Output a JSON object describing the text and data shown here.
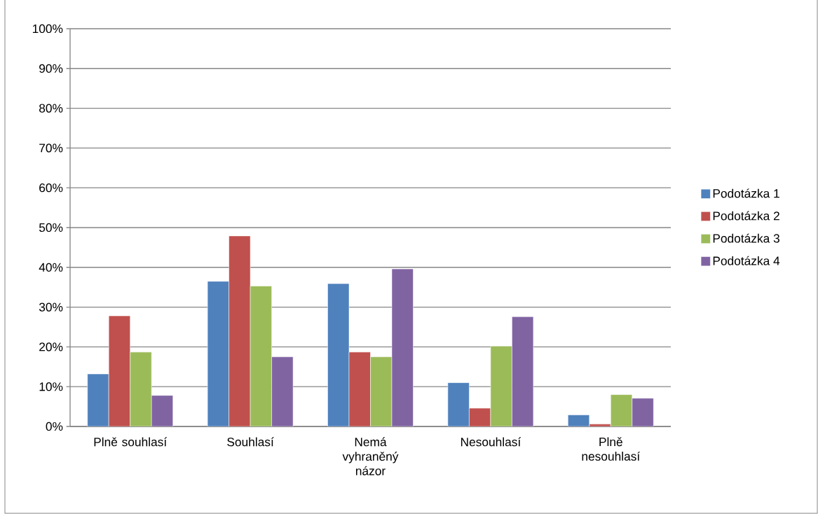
{
  "chart_data": {
    "type": "bar",
    "categories": [
      "Plně souhlasí",
      "Souhlasí",
      "Nemá vyhraněný názor",
      "Nesouhlasí",
      "Plně nesouhlasí"
    ],
    "series": [
      {
        "name": "Podotázka 1",
        "color": "#4f81bd",
        "values": [
          13.2,
          36.5,
          35.9,
          11.0,
          2.9
        ]
      },
      {
        "name": "Podotázka 2",
        "color": "#c0504d",
        "values": [
          27.8,
          47.9,
          18.7,
          4.6,
          0.6
        ]
      },
      {
        "name": "Podotázka 3",
        "color": "#9bbb59",
        "values": [
          18.7,
          35.3,
          17.5,
          20.2,
          8.0
        ]
      },
      {
        "name": "Podotázka 4",
        "color": "#8064a2",
        "values": [
          7.8,
          17.5,
          39.6,
          27.6,
          7.1
        ]
      }
    ],
    "ylim": [
      0,
      100
    ],
    "yticks": [
      {
        "value": 0,
        "label": "0%"
      },
      {
        "value": 10,
        "label": "10%"
      },
      {
        "value": 20,
        "label": "20%"
      },
      {
        "value": 30,
        "label": "30%"
      },
      {
        "value": 40,
        "label": "40%"
      },
      {
        "value": 50,
        "label": "50%"
      },
      {
        "value": 60,
        "label": "60%"
      },
      {
        "value": 70,
        "label": "70%"
      },
      {
        "value": 80,
        "label": "80%"
      },
      {
        "value": 90,
        "label": "90%"
      },
      {
        "value": 100,
        "label": "100%"
      }
    ],
    "grid": "y",
    "legend": "right"
  }
}
